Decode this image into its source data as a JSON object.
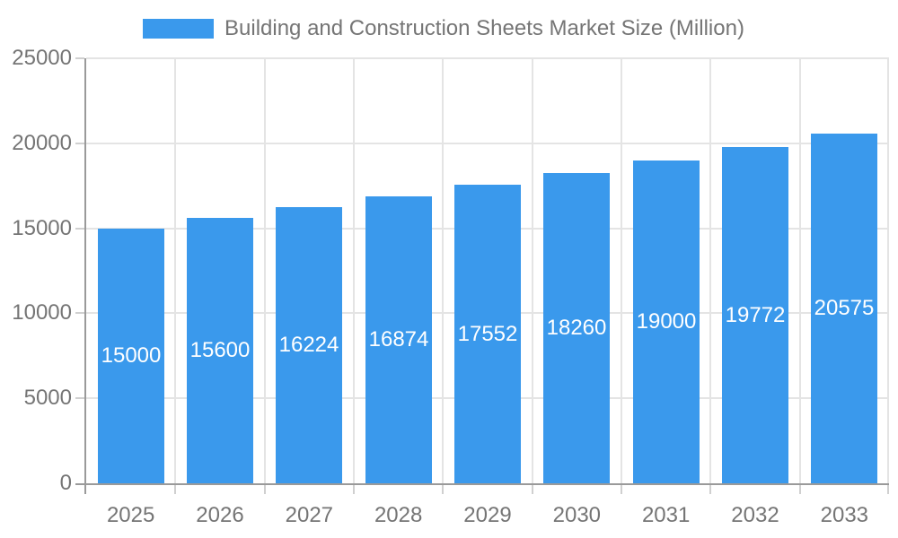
{
  "chart_data": {
    "type": "bar",
    "title": "Building and Construction Sheets Market Size (Million)",
    "series_name": "Building and Construction Sheets Market Size (Million)",
    "categories": [
      "2025",
      "2026",
      "2027",
      "2028",
      "2029",
      "2030",
      "2031",
      "2032",
      "2033"
    ],
    "values": [
      15000,
      15600,
      16224,
      16874,
      17552,
      18260,
      19000,
      19772,
      20575
    ],
    "xlabel": "",
    "ylabel": "",
    "ylim": [
      0,
      25000
    ],
    "yticks": [
      0,
      5000,
      10000,
      15000,
      20000,
      25000
    ],
    "grid": true,
    "legend_position": "top",
    "value_labels": "inside-middle",
    "colors": {
      "bar": "#3A99EC",
      "grid": "#E4E4E4",
      "axis": "#9A9A9A",
      "tick": "#D0D0D0",
      "axis_text": "#757575",
      "value_label_text": "#FFFFFF",
      "background": "#FFFFFF"
    }
  }
}
